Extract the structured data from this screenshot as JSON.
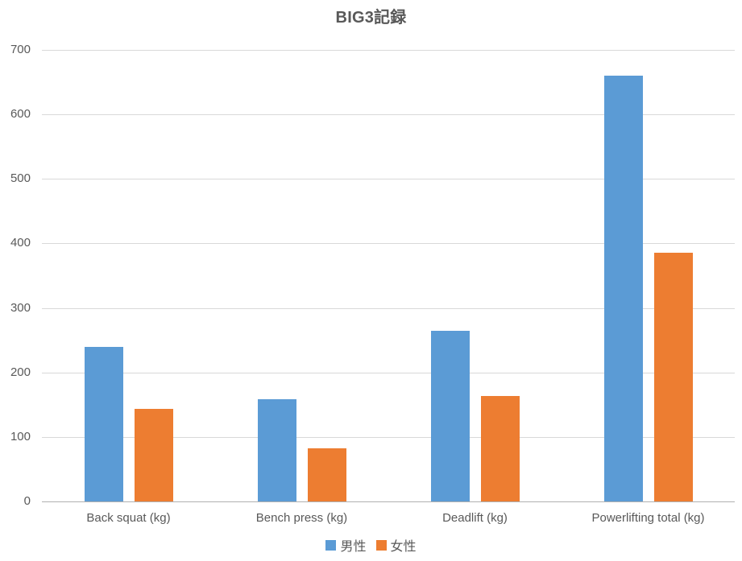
{
  "chart_data": {
    "type": "bar",
    "title": "BIG3記録",
    "categories": [
      "Back squat (kg)",
      "Bench press (kg)",
      "Deadlift (kg)",
      "Powerlifting total (kg)"
    ],
    "series": [
      {
        "name": "男性",
        "color": "#5B9BD5",
        "values": [
          240,
          158,
          265,
          660
        ]
      },
      {
        "name": "女性",
        "color": "#ED7D31",
        "values": [
          143,
          82,
          163,
          385
        ]
      }
    ],
    "xlabel": "",
    "ylabel": "",
    "ylim": [
      0,
      700
    ],
    "yticks": [
      0,
      100,
      200,
      300,
      400,
      500,
      600,
      700
    ],
    "grid": true,
    "legend_position": "bottom",
    "colors": {
      "gridline": "#d9d9d9",
      "axis_line": "#b0b0b0",
      "text": "#595959"
    }
  }
}
